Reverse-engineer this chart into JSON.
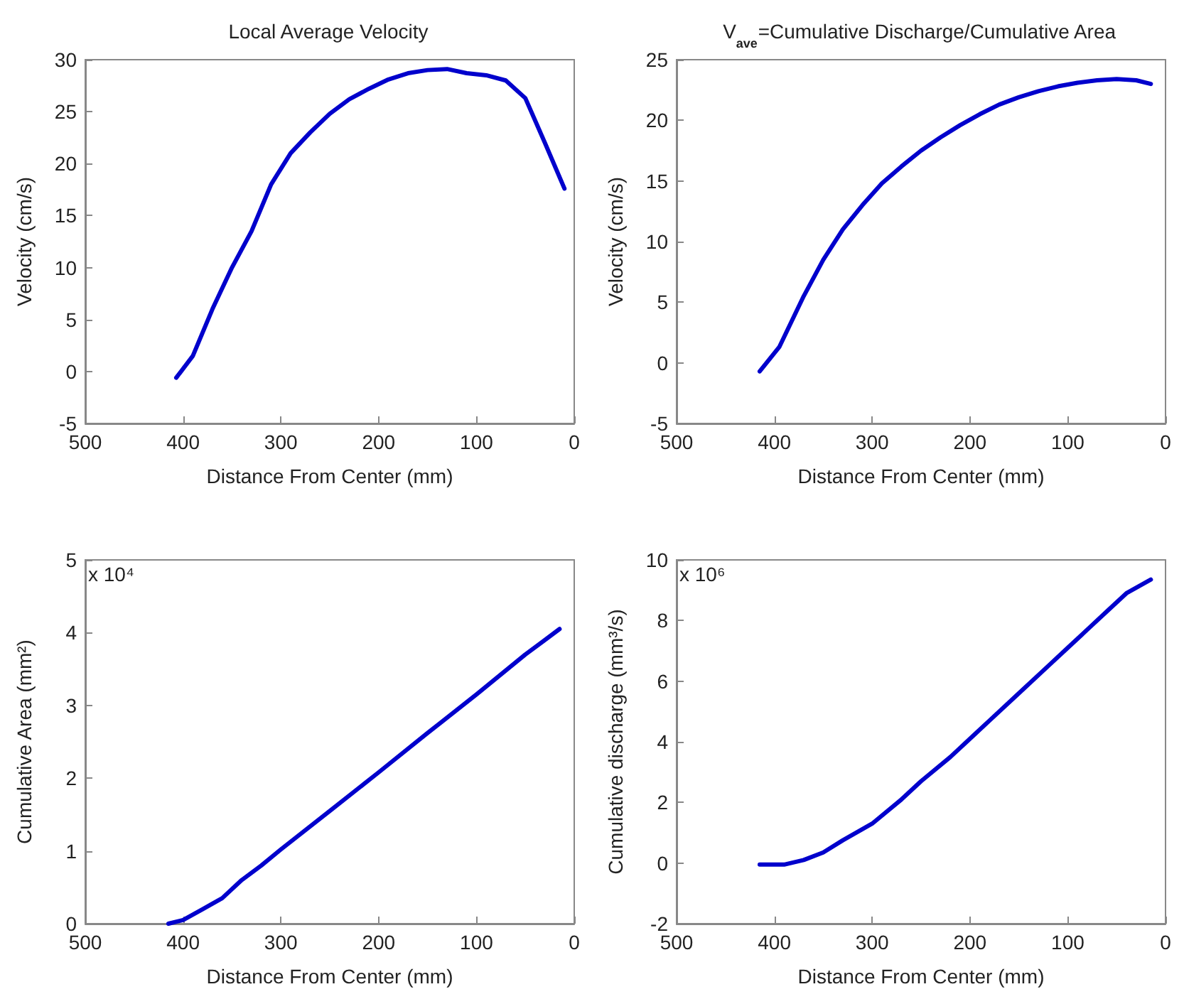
{
  "chart_data": [
    {
      "type": "line",
      "title": "Local Average Velocity",
      "xlabel": "Distance From Center (mm)",
      "ylabel": "Velocity (cm/s)",
      "xlim": [
        500,
        0
      ],
      "xticks": [
        500,
        400,
        300,
        200,
        100,
        0
      ],
      "ylim": [
        -5,
        30
      ],
      "yticks": [
        -5,
        0,
        5,
        10,
        15,
        20,
        25,
        30
      ],
      "grid": false,
      "marker": "none",
      "line_style": "solid",
      "x": [
        407,
        390,
        370,
        350,
        330,
        310,
        290,
        270,
        250,
        230,
        210,
        190,
        170,
        150,
        130,
        110,
        90,
        70,
        50,
        30,
        10
      ],
      "series": [
        {
          "color": "#0000cc",
          "values": [
            -0.6,
            1.5,
            6,
            10,
            13.5,
            18,
            21,
            23,
            24.8,
            26.2,
            27.2,
            28.1,
            28.7,
            29.0,
            29.1,
            28.7,
            28.5,
            28,
            26.3,
            22,
            17.6
          ]
        }
      ]
    },
    {
      "type": "line",
      "title": "V$_{ave}$=Cumulative Discharge/Cumulative Area",
      "xlabel": "Distance From Center (mm)",
      "ylabel": "Velocity (cm/s)",
      "xlim": [
        500,
        0
      ],
      "xticks": [
        500,
        400,
        300,
        200,
        100,
        0
      ],
      "ylim": [
        -5,
        25
      ],
      "yticks": [
        -5,
        0,
        5,
        10,
        15,
        20,
        25
      ],
      "grid": false,
      "marker": "none",
      "line_style": "solid",
      "x": [
        415,
        395,
        370,
        350,
        330,
        310,
        290,
        270,
        250,
        230,
        210,
        190,
        170,
        150,
        130,
        110,
        90,
        70,
        50,
        30,
        15
      ],
      "series": [
        {
          "color": "#0000cc",
          "values": [
            -0.7,
            1.3,
            5.5,
            8.5,
            11,
            13,
            14.8,
            16.2,
            17.5,
            18.6,
            19.6,
            20.5,
            21.3,
            21.9,
            22.4,
            22.8,
            23.1,
            23.3,
            23.4,
            23.3,
            23.0
          ]
        }
      ]
    },
    {
      "type": "line",
      "xlabel": "Distance From Center (mm)",
      "ylabel": "Cumulative Area (mm²)",
      "annotations": [
        "x 10⁴"
      ],
      "xlim": [
        500,
        0
      ],
      "xticks": [
        500,
        400,
        300,
        200,
        100,
        0
      ],
      "ylim": [
        0,
        5
      ],
      "yticks": [
        0,
        1,
        2,
        3,
        4,
        5
      ],
      "grid": false,
      "marker": "none",
      "line_style": "solid",
      "x": [
        415,
        400,
        380,
        360,
        340,
        320,
        300,
        250,
        200,
        150,
        100,
        50,
        15
      ],
      "series": [
        {
          "color": "#0000cc",
          "values": [
            0,
            0.05,
            0.2,
            0.35,
            0.6,
            0.8,
            1.02,
            1.55,
            2.08,
            2.62,
            3.15,
            3.7,
            4.05
          ]
        }
      ]
    },
    {
      "type": "line",
      "xlabel": "Distance From Center (mm)",
      "ylabel": "Cumulative discharge (mm³/s)",
      "annotations": [
        "x 10⁶"
      ],
      "xlim": [
        500,
        0
      ],
      "xticks": [
        500,
        400,
        300,
        200,
        100,
        0
      ],
      "ylim": [
        -2,
        10
      ],
      "yticks": [
        -2,
        0,
        2,
        4,
        6,
        8,
        10
      ],
      "grid": false,
      "marker": "none",
      "line_style": "solid",
      "x": [
        415,
        390,
        370,
        350,
        330,
        300,
        270,
        250,
        220,
        200,
        180,
        150,
        120,
        100,
        80,
        60,
        40,
        15
      ],
      "series": [
        {
          "color": "#0000cc",
          "values": [
            -0.05,
            -0.05,
            0.1,
            0.35,
            0.75,
            1.3,
            2.1,
            2.7,
            3.5,
            4.1,
            4.7,
            5.6,
            6.5,
            7.1,
            7.7,
            8.3,
            8.9,
            9.35
          ]
        }
      ]
    }
  ]
}
